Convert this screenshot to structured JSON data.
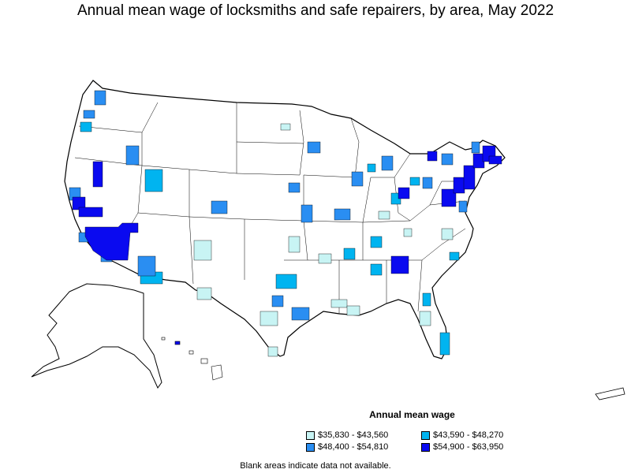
{
  "title": "Annual mean wage of locksmiths and safe repairers, by area, May 2022",
  "legend": {
    "title": "Annual mean wage",
    "items": [
      {
        "label": "$35,830 - $43,560",
        "color": "#c8f4f4"
      },
      {
        "label": "$43,590 - $48,270",
        "color": "#00b4f0"
      },
      {
        "label": "$48,400 - $54,810",
        "color": "#2a8ef2"
      },
      {
        "label": "$54,900 - $63,950",
        "color": "#0a0af0"
      }
    ]
  },
  "note": "Blank areas indicate data not available.",
  "colors": {
    "outline": "#000000",
    "background": "#ffffff"
  }
}
